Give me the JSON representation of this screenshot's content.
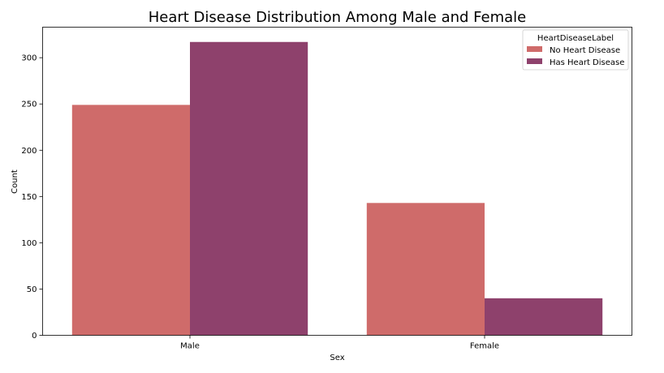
{
  "chart_data": {
    "type": "bar",
    "title": "Heart Disease Distribution Among Male and Female",
    "xlabel": "Sex",
    "ylabel": "Count",
    "categories": [
      "Male",
      "Female"
    ],
    "series": [
      {
        "name": "No Heart Disease",
        "values": [
          249,
          143
        ],
        "color": "#cf6b6a"
      },
      {
        "name": "Has Heart Disease",
        "values": [
          317,
          40
        ],
        "color": "#8e416c"
      }
    ],
    "ylim": [
      0,
      333
    ],
    "yticks": [
      0,
      50,
      100,
      150,
      200,
      250,
      300
    ],
    "legend": {
      "title": "HeartDiseaseLabel",
      "position": "top-right"
    },
    "grid": false
  }
}
